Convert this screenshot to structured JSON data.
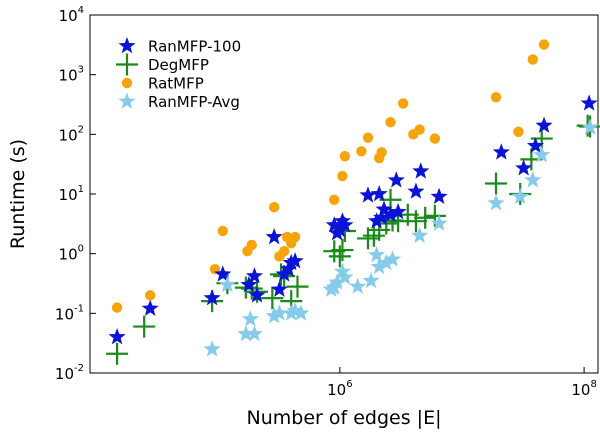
{
  "chart_data": {
    "type": "scatter",
    "xscale": "log",
    "yscale": "log",
    "xlim": [
      9000,
      130000000
    ],
    "ylim": [
      0.01,
      10000
    ],
    "xlabel": "Number of edges |E|",
    "ylabel": "Runtime (s)",
    "x_ticks": [
      {
        "base": "10",
        "exp": "6",
        "value": 1000000
      },
      {
        "base": "10",
        "exp": "8",
        "value": 100000000
      }
    ],
    "y_ticks": [
      {
        "base": "10",
        "exp": "-2",
        "value": 0.01
      },
      {
        "base": "10",
        "exp": "-1",
        "value": 0.1
      },
      {
        "base": "10",
        "exp": "0",
        "value": 1
      },
      {
        "base": "10",
        "exp": "1",
        "value": 10
      },
      {
        "base": "10",
        "exp": "2",
        "value": 100
      },
      {
        "base": "10",
        "exp": "3",
        "value": 1000
      },
      {
        "base": "10",
        "exp": "4",
        "value": 10000
      }
    ],
    "grid": false,
    "legend_position": "top-left",
    "series": [
      {
        "name": "RanMFP-100",
        "marker": "star",
        "color": "#0b13d6",
        "points": [
          [
            15000,
            0.04
          ],
          [
            28000,
            0.12
          ],
          [
            90000,
            0.18
          ],
          [
            110000,
            0.45
          ],
          [
            180000,
            0.3
          ],
          [
            200000,
            0.42
          ],
          [
            210000,
            0.2
          ],
          [
            290000,
            1.9
          ],
          [
            320000,
            0.25
          ],
          [
            350000,
            0.45
          ],
          [
            380000,
            0.55
          ],
          [
            400000,
            0.7
          ],
          [
            430000,
            0.75
          ],
          [
            900000,
            3.0
          ],
          [
            950000,
            2.2
          ],
          [
            1000000,
            2.5
          ],
          [
            1050000,
            3.5
          ],
          [
            1100000,
            3.0
          ],
          [
            1700000,
            9.5
          ],
          [
            2000000,
            3.5
          ],
          [
            2100000,
            10.0
          ],
          [
            2200000,
            4.0
          ],
          [
            2300000,
            5.5
          ],
          [
            2600000,
            4.5
          ],
          [
            2900000,
            17.0
          ],
          [
            3000000,
            5.0
          ],
          [
            4200000,
            11.0
          ],
          [
            4600000,
            24.0
          ],
          [
            6500000,
            9.0
          ],
          [
            21000000,
            50.0
          ],
          [
            32000000,
            27.0
          ],
          [
            40000000,
            64.0
          ],
          [
            47000000,
            140.0
          ],
          [
            110000000,
            330.0
          ]
        ]
      },
      {
        "name": "DegMFP",
        "marker": "plus",
        "color": "#1b8a1b",
        "points": [
          [
            15000,
            0.021
          ],
          [
            25000,
            0.06
          ],
          [
            90000,
            0.16
          ],
          [
            120000,
            0.32
          ],
          [
            170000,
            0.27
          ],
          [
            190000,
            0.26
          ],
          [
            210000,
            0.23
          ],
          [
            280000,
            0.18
          ],
          [
            330000,
            0.45
          ],
          [
            350000,
            0.42
          ],
          [
            400000,
            0.16
          ],
          [
            450000,
            0.28
          ],
          [
            900000,
            1.1
          ],
          [
            1000000,
            0.9
          ],
          [
            1050000,
            1.15
          ],
          [
            1100000,
            2.4
          ],
          [
            1700000,
            1.8
          ],
          [
            1900000,
            2.0
          ],
          [
            2100000,
            2.5
          ],
          [
            2400000,
            3.2
          ],
          [
            2600000,
            8.0
          ],
          [
            2700000,
            3.6
          ],
          [
            3000000,
            3.5
          ],
          [
            3600000,
            4.5
          ],
          [
            4200000,
            3.5
          ],
          [
            5000000,
            4.0
          ],
          [
            6000000,
            4.3
          ],
          [
            19000000,
            15.0
          ],
          [
            30000000,
            10.0
          ],
          [
            37000000,
            38.0
          ],
          [
            45000000,
            85.0
          ],
          [
            107000000,
            140.0
          ],
          [
            112000000,
            135.0
          ]
        ]
      },
      {
        "name": "RatMFP",
        "marker": "circle",
        "color": "#f5a40c",
        "points": [
          [
            15000,
            0.125
          ],
          [
            28000,
            0.2
          ],
          [
            95000,
            0.55
          ],
          [
            110000,
            2.4
          ],
          [
            175000,
            1.1
          ],
          [
            190000,
            1.4
          ],
          [
            290000,
            6.0
          ],
          [
            320000,
            0.9
          ],
          [
            350000,
            1.1
          ],
          [
            370000,
            1.9
          ],
          [
            400000,
            1.5
          ],
          [
            430000,
            1.9
          ],
          [
            900000,
            8.0
          ],
          [
            1050000,
            20.0
          ],
          [
            1100000,
            43.0
          ],
          [
            1500000,
            52.0
          ],
          [
            1700000,
            88.0
          ],
          [
            2100000,
            40.0
          ],
          [
            2200000,
            50.0
          ],
          [
            2600000,
            160.0
          ],
          [
            3300000,
            330.0
          ],
          [
            4000000,
            100.0
          ],
          [
            4500000,
            120.0
          ],
          [
            6000000,
            85.0
          ],
          [
            19000000,
            420.0
          ],
          [
            29000000,
            110.0
          ],
          [
            38000000,
            1800.0
          ],
          [
            47000000,
            3200.0
          ]
        ]
      },
      {
        "name": "RanMFP-Avg",
        "marker": "star",
        "color": "#87cbea",
        "points": [
          [
            90000,
            0.025
          ],
          [
            120000,
            0.3
          ],
          [
            170000,
            0.045
          ],
          [
            185000,
            0.08
          ],
          [
            200000,
            0.045
          ],
          [
            290000,
            0.09
          ],
          [
            320000,
            0.1
          ],
          [
            400000,
            0.1
          ],
          [
            430000,
            0.11
          ],
          [
            480000,
            0.1
          ],
          [
            850000,
            0.25
          ],
          [
            900000,
            0.27
          ],
          [
            950000,
            0.33
          ],
          [
            1050000,
            0.5
          ],
          [
            1100000,
            0.4
          ],
          [
            1400000,
            0.28
          ],
          [
            1800000,
            0.35
          ],
          [
            2000000,
            0.95
          ],
          [
            2100000,
            0.6
          ],
          [
            2400000,
            0.7
          ],
          [
            2700000,
            0.8
          ],
          [
            4500000,
            2.0
          ],
          [
            6500000,
            3.2
          ],
          [
            19000000,
            7.0
          ],
          [
            30000000,
            9.0
          ],
          [
            38000000,
            17.0
          ],
          [
            45000000,
            45.0
          ],
          [
            112000000,
            130.0
          ]
        ]
      }
    ]
  }
}
